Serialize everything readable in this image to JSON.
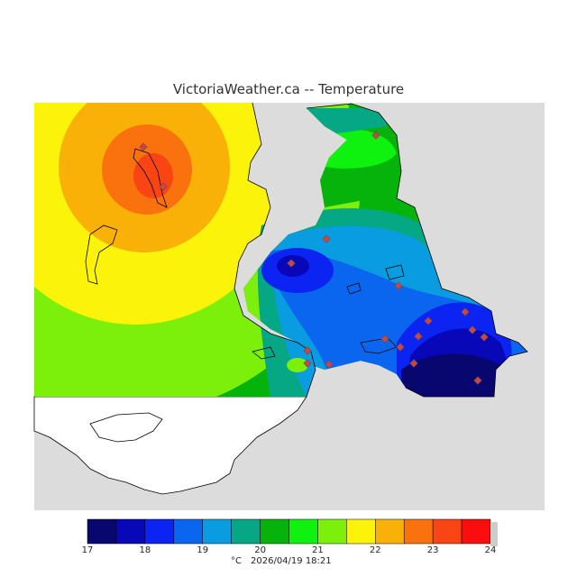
{
  "title": "VictoriaWeather.ca -- Temperature",
  "legend": {
    "ticks": [
      "17",
      "18",
      "19",
      "20",
      "21",
      "22",
      "23",
      "24"
    ],
    "colors": [
      "#07076f",
      "#0808b8",
      "#0b24f2",
      "#0a66ee",
      "#0a9ce0",
      "#05a784",
      "#06b30b",
      "#0ff20f",
      "#7cf00b",
      "#fcf30a",
      "#f9b107",
      "#f9720d",
      "#f94514",
      "#fb0d0d"
    ],
    "unit_label": "°C",
    "timestamp": "2026/04/19 18:21"
  },
  "map": {
    "no_data_color": "#dcdcdc",
    "outside_color": "#ffffff",
    "station_marker_color": "#cc4444"
  }
}
